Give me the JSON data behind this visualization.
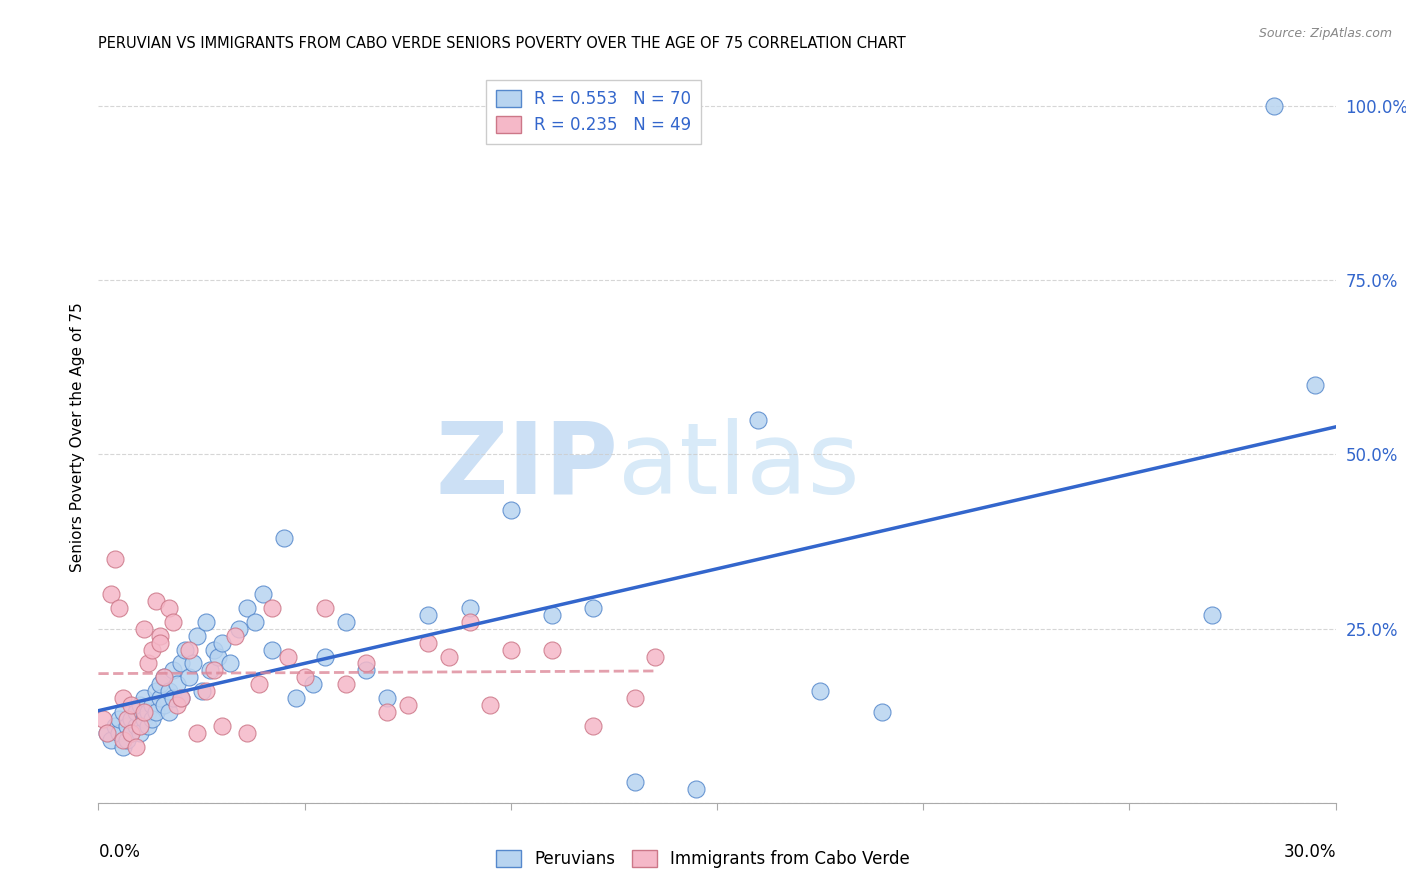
{
  "title": "PERUVIAN VS IMMIGRANTS FROM CABO VERDE SENIORS POVERTY OVER THE AGE OF 75 CORRELATION CHART",
  "source": "Source: ZipAtlas.com",
  "ylabel": "Seniors Poverty Over the Age of 75",
  "xlim": [
    0.0,
    0.3
  ],
  "ylim": [
    0.0,
    1.05
  ],
  "peruvian_color": "#b8d4f0",
  "peruvian_edge": "#5588cc",
  "cabo_verde_color": "#f5b8c8",
  "cabo_verde_edge": "#cc7788",
  "line_peru_color": "#3366cc",
  "line_cabo_color": "#dd8899",
  "R_peru": 0.553,
  "N_peru": 70,
  "R_cabo": 0.235,
  "N_cabo": 49,
  "peruvian_x": [
    0.002,
    0.003,
    0.004,
    0.005,
    0.005,
    0.006,
    0.006,
    0.007,
    0.007,
    0.008,
    0.008,
    0.009,
    0.009,
    0.01,
    0.01,
    0.011,
    0.011,
    0.012,
    0.012,
    0.013,
    0.013,
    0.014,
    0.014,
    0.015,
    0.015,
    0.016,
    0.016,
    0.017,
    0.017,
    0.018,
    0.018,
    0.019,
    0.02,
    0.02,
    0.021,
    0.022,
    0.023,
    0.024,
    0.025,
    0.026,
    0.027,
    0.028,
    0.029,
    0.03,
    0.032,
    0.034,
    0.036,
    0.038,
    0.04,
    0.042,
    0.045,
    0.048,
    0.052,
    0.055,
    0.06,
    0.065,
    0.07,
    0.08,
    0.09,
    0.1,
    0.11,
    0.12,
    0.13,
    0.145,
    0.16,
    0.175,
    0.19,
    0.27,
    0.285,
    0.295
  ],
  "peruvian_y": [
    0.1,
    0.09,
    0.11,
    0.1,
    0.12,
    0.08,
    0.13,
    0.09,
    0.11,
    0.1,
    0.12,
    0.11,
    0.13,
    0.1,
    0.14,
    0.12,
    0.15,
    0.11,
    0.13,
    0.14,
    0.12,
    0.16,
    0.13,
    0.15,
    0.17,
    0.14,
    0.18,
    0.13,
    0.16,
    0.15,
    0.19,
    0.17,
    0.2,
    0.15,
    0.22,
    0.18,
    0.2,
    0.24,
    0.16,
    0.26,
    0.19,
    0.22,
    0.21,
    0.23,
    0.2,
    0.25,
    0.28,
    0.26,
    0.3,
    0.22,
    0.38,
    0.15,
    0.17,
    0.21,
    0.26,
    0.19,
    0.15,
    0.27,
    0.28,
    0.42,
    0.27,
    0.28,
    0.03,
    0.02,
    0.55,
    0.16,
    0.13,
    0.27,
    1.0,
    0.6
  ],
  "cabo_x": [
    0.001,
    0.002,
    0.003,
    0.004,
    0.005,
    0.006,
    0.006,
    0.007,
    0.008,
    0.008,
    0.009,
    0.01,
    0.011,
    0.011,
    0.012,
    0.013,
    0.014,
    0.015,
    0.015,
    0.016,
    0.017,
    0.018,
    0.019,
    0.02,
    0.022,
    0.024,
    0.026,
    0.028,
    0.03,
    0.033,
    0.036,
    0.039,
    0.042,
    0.046,
    0.05,
    0.055,
    0.06,
    0.065,
    0.07,
    0.075,
    0.08,
    0.085,
    0.09,
    0.095,
    0.1,
    0.11,
    0.12,
    0.13,
    0.135
  ],
  "cabo_y": [
    0.12,
    0.1,
    0.3,
    0.35,
    0.28,
    0.09,
    0.15,
    0.12,
    0.1,
    0.14,
    0.08,
    0.11,
    0.25,
    0.13,
    0.2,
    0.22,
    0.29,
    0.24,
    0.23,
    0.18,
    0.28,
    0.26,
    0.14,
    0.15,
    0.22,
    0.1,
    0.16,
    0.19,
    0.11,
    0.24,
    0.1,
    0.17,
    0.28,
    0.21,
    0.18,
    0.28,
    0.17,
    0.2,
    0.13,
    0.14,
    0.23,
    0.21,
    0.26,
    0.14,
    0.22,
    0.22,
    0.11,
    0.15,
    0.21
  ]
}
